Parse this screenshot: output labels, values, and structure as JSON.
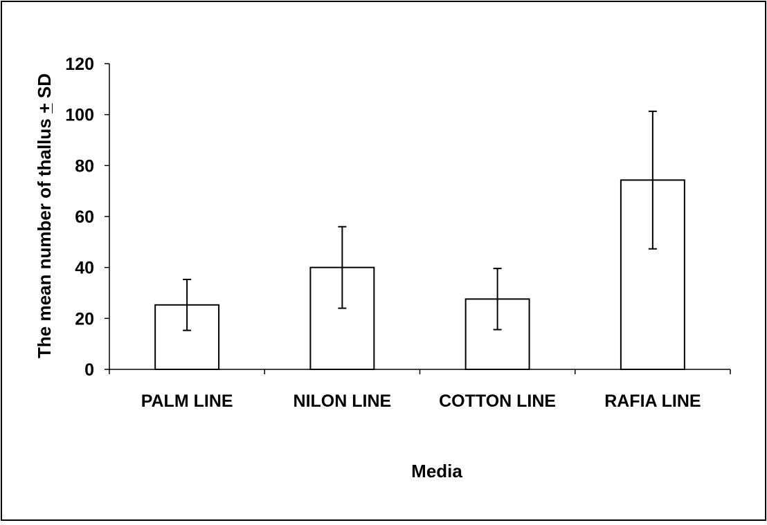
{
  "chart_data": {
    "type": "bar",
    "categories": [
      "PALM LINE",
      "NILON LINE",
      "COTTON LINE",
      "RAFIA LINE"
    ],
    "series": [
      {
        "values": [
          25.3,
          40.0,
          27.6,
          74.3
        ],
        "sd": [
          10.0,
          16.0,
          12.0,
          27.0
        ]
      }
    ],
    "xlabel": "Media",
    "ylabel_main": "The mean number of thallus ",
    "ylabel_pm_top": "+",
    "ylabel_pm_bottom": "_",
    "ylabel_end": " SD",
    "ylim": [
      0,
      120
    ],
    "yticks": [
      0,
      20,
      40,
      60,
      80,
      100,
      120
    ],
    "bar_fill": "#ffffff",
    "bar_stroke": "#000000",
    "grid": false,
    "legend": "none"
  }
}
